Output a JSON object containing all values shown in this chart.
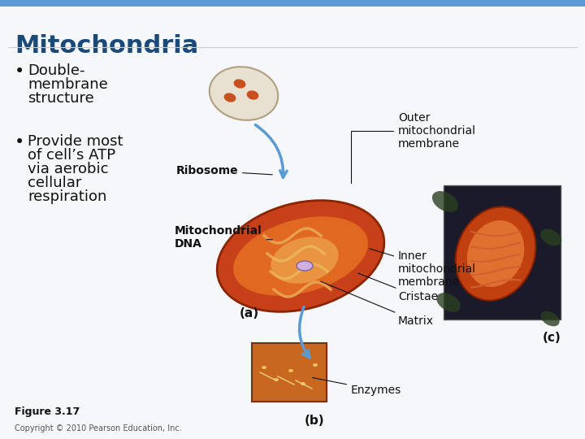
{
  "title": "Mitochondria",
  "title_color": "#1a4a7a",
  "title_fontsize": 22,
  "title_bold": true,
  "bullet1_lines": [
    "Double-",
    "membrane",
    "structure"
  ],
  "bullet2_lines": [
    "Provide most",
    "of cell’s ATP",
    "via aerobic",
    "cellular",
    "respiration"
  ],
  "bullet_fontsize": 13,
  "bullet_color": "#111111",
  "label_ribosome": "Ribosome",
  "label_mito_dna": "Mitochondrial\nDNA",
  "label_outer": "Outer\nmitochondrial\nmembrane",
  "label_inner": "Inner\nmitochondrial\nmembrane",
  "label_cristae": "Cristae",
  "label_matrix": "Matrix",
  "label_enzymes": "Enzymes",
  "label_a": "(a)",
  "label_b": "(b)",
  "label_c": "(c)",
  "figure_label": "Figure 3.17",
  "copyright": "Copyright © 2010 Pearson Education, Inc.",
  "top_bar_color": "#5b9bd5",
  "background_color": "#ffffff",
  "slide_bg": "#f5f7fa",
  "label_fontsize": 10,
  "small_fontsize": 8
}
